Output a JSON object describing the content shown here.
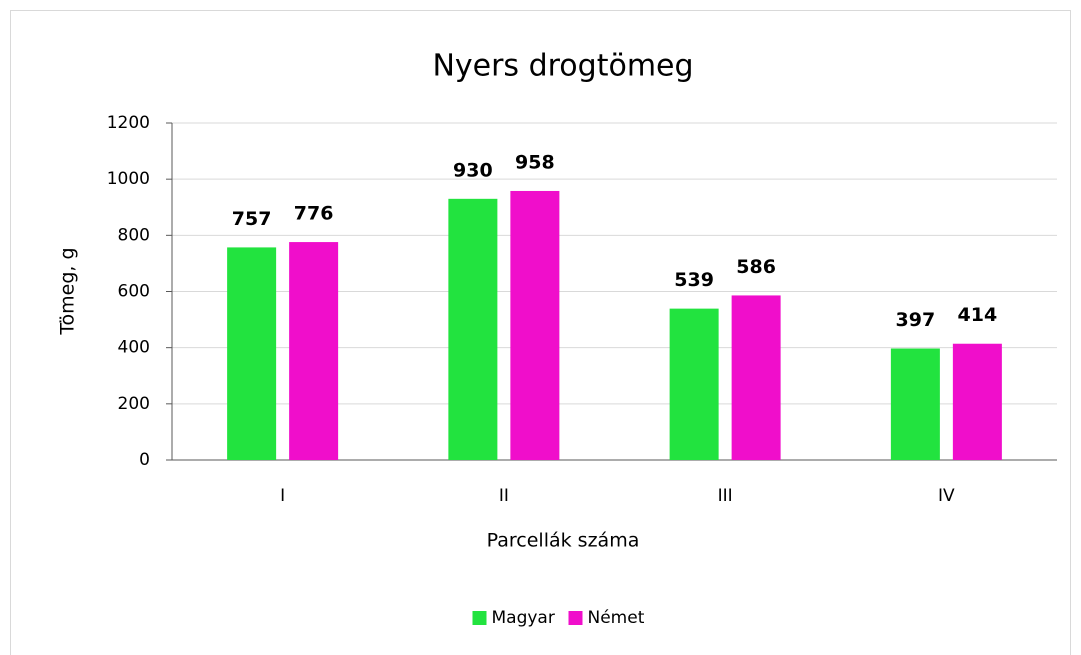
{
  "chart_data": {
    "type": "bar",
    "title": "Nyers drogtömeg",
    "x_label": "Parcellák száma",
    "y_label": "Tömeg, g",
    "categories": [
      "I",
      "II",
      "III",
      "IV"
    ],
    "series": [
      {
        "name": "Magyar",
        "color": "#22e33f",
        "values": [
          757,
          930,
          539,
          397
        ]
      },
      {
        "name": "Német",
        "color": "#f00ecb",
        "values": [
          776,
          958,
          586,
          414
        ]
      }
    ],
    "ylim": [
      0,
      1200
    ],
    "yticks": [
      0,
      200,
      400,
      600,
      800,
      1000,
      1200
    ],
    "grid": true,
    "legend": "bottom"
  }
}
